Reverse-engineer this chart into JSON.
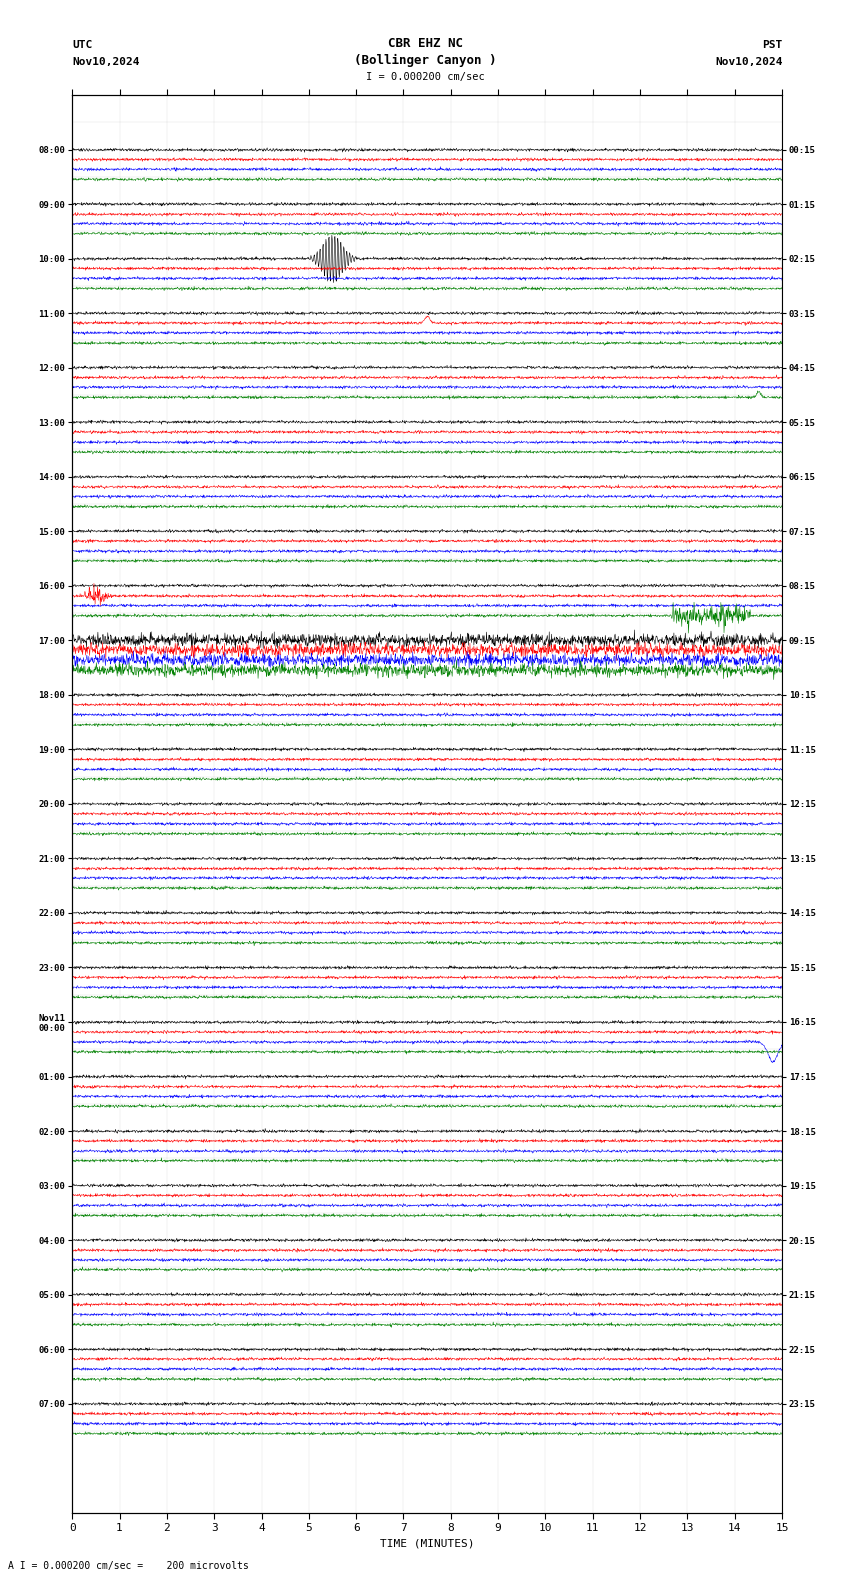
{
  "title_line1": "CBR EHZ NC",
  "title_line2": "(Bollinger Canyon )",
  "scale_label": "I = 0.000200 cm/sec",
  "bottom_label": "A I = 0.000200 cm/sec =    200 microvolts",
  "utc_label": "UTC",
  "utc_date": "Nov10,2024",
  "pst_label": "PST",
  "pst_date": "Nov10,2024",
  "xlabel": "TIME (MINUTES)",
  "left_times": [
    "08:00",
    "09:00",
    "10:00",
    "11:00",
    "12:00",
    "13:00",
    "14:00",
    "15:00",
    "16:00",
    "17:00",
    "18:00",
    "19:00",
    "20:00",
    "21:00",
    "22:00",
    "23:00",
    "Nov11\n00:00",
    "01:00",
    "02:00",
    "03:00",
    "04:00",
    "05:00",
    "06:00",
    "07:00"
  ],
  "right_times": [
    "00:15",
    "01:15",
    "02:15",
    "03:15",
    "04:15",
    "05:15",
    "06:15",
    "07:15",
    "08:15",
    "09:15",
    "10:15",
    "11:15",
    "12:15",
    "13:15",
    "14:15",
    "15:15",
    "16:15",
    "17:15",
    "18:15",
    "19:15",
    "20:15",
    "21:15",
    "22:15",
    "23:15"
  ],
  "n_rows": 24,
  "traces_per_row": 4,
  "colors": [
    "black",
    "red",
    "blue",
    "green"
  ],
  "bg_color": "white",
  "xlim": [
    0,
    15
  ],
  "xticks": [
    0,
    1,
    2,
    3,
    4,
    5,
    6,
    7,
    8,
    9,
    10,
    11,
    12,
    13,
    14,
    15
  ]
}
